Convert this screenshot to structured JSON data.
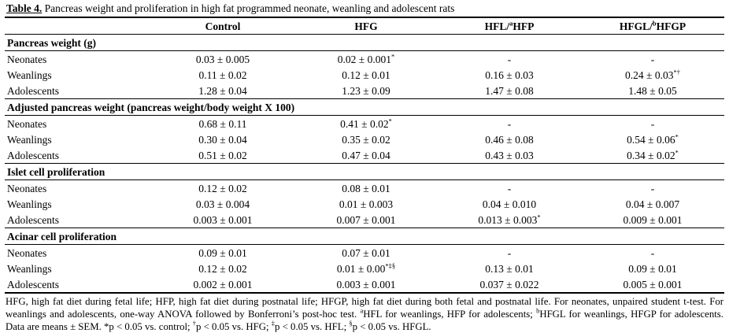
{
  "caption": {
    "label": "Table 4.",
    "text": " Pancreas weight and proliferation in high fat programmed neonate, weanling and adolescent rats"
  },
  "columns": [
    [],
    [
      {
        "t": "Control"
      }
    ],
    [
      {
        "t": "HFG"
      }
    ],
    [
      {
        "t": "HFL/"
      },
      {
        "s": "a"
      },
      {
        "t": "HFP"
      }
    ],
    [
      {
        "t": "HFGL/"
      },
      {
        "s": "b"
      },
      {
        "t": "HFGP"
      }
    ]
  ],
  "sections": [
    {
      "header": "Pancreas weight (g)",
      "rows": [
        {
          "label": "Neonates",
          "cells": [
            {
              "v": "0.03 ± 0.005"
            },
            {
              "v": "0.02 ± 0.001",
              "sup": "*"
            },
            {
              "v": "-"
            },
            {
              "v": "-"
            }
          ]
        },
        {
          "label": "Weanlings",
          "cells": [
            {
              "v": "0.11 ± 0.02"
            },
            {
              "v": "0.12 ± 0.01"
            },
            {
              "v": "0.16 ± 0.03"
            },
            {
              "v": "0.24 ± 0.03",
              "sup": "*†"
            }
          ]
        },
        {
          "label": "Adolescents",
          "cells": [
            {
              "v": "1.28 ± 0.04"
            },
            {
              "v": "1.23 ± 0.09"
            },
            {
              "v": "1.47 ± 0.08"
            },
            {
              "v": "1.48 ± 0.05"
            }
          ]
        }
      ]
    },
    {
      "header": "Adjusted pancreas weight (pancreas weight/body weight X 100)",
      "rows": [
        {
          "label": "Neonates",
          "cells": [
            {
              "v": "0.68 ± 0.11"
            },
            {
              "v": "0.41 ± 0.02",
              "sup": "*"
            },
            {
              "v": "-"
            },
            {
              "v": "-"
            }
          ]
        },
        {
          "label": "Weanlings",
          "cells": [
            {
              "v": "0.30 ± 0.04"
            },
            {
              "v": "0.35 ± 0.02"
            },
            {
              "v": "0.46 ± 0.08"
            },
            {
              "v": "0.54 ± 0.06",
              "sup": "*"
            }
          ]
        },
        {
          "label": "Adolescents",
          "cells": [
            {
              "v": "0.51 ± 0.02"
            },
            {
              "v": "0.47 ± 0.04"
            },
            {
              "v": "0.43 ± 0.03"
            },
            {
              "v": "0.34 ± 0.02",
              "sup": "*"
            }
          ]
        }
      ]
    },
    {
      "header": "Islet cell proliferation",
      "rows": [
        {
          "label": "Neonates",
          "cells": [
            {
              "v": "0.12 ± 0.02"
            },
            {
              "v": "0.08 ± 0.01"
            },
            {
              "v": "-"
            },
            {
              "v": "-"
            }
          ]
        },
        {
          "label": "Weanlings",
          "cells": [
            {
              "v": "0.03 ± 0.004"
            },
            {
              "v": "0.01 ± 0.003"
            },
            {
              "v": "0.04 ± 0.010"
            },
            {
              "v": "0.04 ± 0.007"
            }
          ]
        },
        {
          "label": "Adolescents",
          "cells": [
            {
              "v": "0.003 ± 0.001"
            },
            {
              "v": "0.007 ± 0.001"
            },
            {
              "v": "0.013 ± 0.003",
              "sup": "*"
            },
            {
              "v": "0.009 ± 0.001"
            }
          ]
        }
      ]
    },
    {
      "header": "Acinar cell proliferation",
      "rows": [
        {
          "label": "Neonates",
          "cells": [
            {
              "v": "0.09 ± 0.01"
            },
            {
              "v": "0.07 ± 0.01"
            },
            {
              "v": "-"
            },
            {
              "v": "-"
            }
          ]
        },
        {
          "label": "Weanlings",
          "cells": [
            {
              "v": "0.12 ± 0.02"
            },
            {
              "v": "0.01 ± 0.00",
              "sup": "*‡§"
            },
            {
              "v": "0.13 ± 0.01"
            },
            {
              "v": "0.09 ± 0.01"
            }
          ]
        },
        {
          "label": "Adolescents",
          "cells": [
            {
              "v": "0.002 ± 0.001"
            },
            {
              "v": "0.003 ± 0.001"
            },
            {
              "v": "0.037 ± 0.022"
            },
            {
              "v": "0.005 ± 0.001"
            }
          ]
        }
      ]
    }
  ],
  "footnote": [
    {
      "t": "HFG, high fat diet during fetal life; HFP, high fat diet during postnatal life; HFGP, high fat diet during both fetal and postnatal life. For neonates, unpaired student t-test. For weanlings and adolescents, one-way ANOVA followed by Bonferroni’s post-hoc test. "
    },
    {
      "s": "a"
    },
    {
      "t": "HFL for weanlings, HFP for adolescents; "
    },
    {
      "s": "b"
    },
    {
      "t": "HFGL for weanlings, HFGP for adolescents. Data are means ± SEM. *p < 0.05 vs. control; "
    },
    {
      "s": "†"
    },
    {
      "t": "p < 0.05 vs. HFG; "
    },
    {
      "s": "‡"
    },
    {
      "t": "p < 0.05 vs. HFL; "
    },
    {
      "s": "§"
    },
    {
      "t": "p < 0.05 vs. HFGL."
    }
  ],
  "colors": {
    "background": "#ffffff",
    "text": "#000000",
    "rule": "#000000"
  }
}
